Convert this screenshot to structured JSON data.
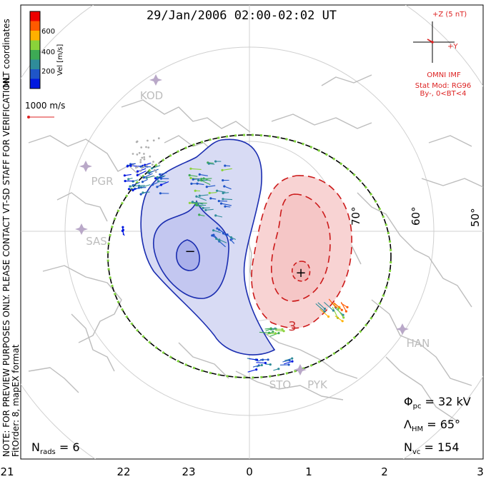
{
  "header": {
    "title": "29/Jan/2006 02:00-02:02 UT"
  },
  "side_notes": {
    "coords": "MLT coordinates",
    "preview": "NOTE: FOR PREVIEW PURPOSES ONLY. PLEASE CONTACT VT-SD STAFF FOR VERIFICATION.",
    "fit": "FitOrder: 8, mapEX format"
  },
  "velocity_scale": {
    "label": "Vel [m/s]",
    "ticks": [
      "600",
      "400",
      "200"
    ],
    "colors": [
      "#0018e0",
      "#1f55c8",
      "#2f8c9a",
      "#3daa55",
      "#8ad23a",
      "#ffb000",
      "#ff5a00",
      "#ee0000"
    ]
  },
  "reference_vector": {
    "label": "1000 m/s"
  },
  "imf": {
    "z_label": "+Z (5 nT)",
    "y_label": "+Y",
    "source": "OMNI IMF",
    "model": "Stat Mod: RG96",
    "condition": "By-, 0<BT<4"
  },
  "stations": [
    "KOD",
    "PGR",
    "SAS",
    "HAN",
    "STO",
    "PYK"
  ],
  "latitude_labels": [
    "70°",
    "60°",
    "50°"
  ],
  "mlt_labels": [
    "21",
    "22",
    "23",
    "0",
    "1",
    "2",
    "3"
  ],
  "convection_cells": {
    "negative_symbol": "−",
    "positive_symbol": "+",
    "contour_label": "3"
  },
  "stats": {
    "phi_pc": "32 kV",
    "lambda_hm": "65°",
    "n_vc": "154",
    "n_rads": "6"
  },
  "colors": {
    "negative_fill": "#c9cdf0",
    "negative_line": "#1020b0",
    "positive_fill": "#f6c4c4",
    "positive_line": "#cc1a1a",
    "heppner_maynard": "#000000",
    "grid": "#cfcfcf",
    "coast": "#bdbdbd",
    "imf_text": "#dd2222"
  }
}
